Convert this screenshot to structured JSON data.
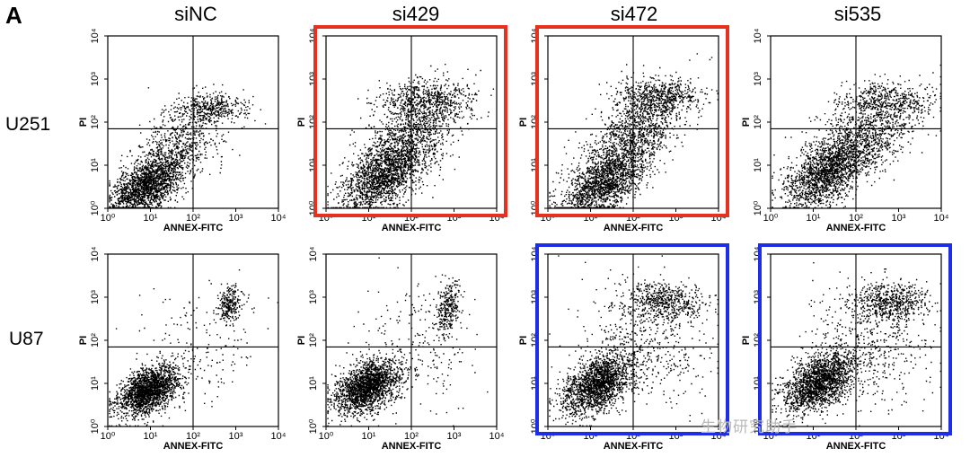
{
  "figure": {
    "panel_letter": "A",
    "columns": [
      "siNC",
      "si429",
      "si472",
      "si535"
    ],
    "rows": [
      "U251",
      "U87"
    ],
    "highlight_colors": {
      "red": "#e5311f",
      "blue": "#1e2ee6"
    },
    "highlights": [
      {
        "row": 0,
        "col": 1,
        "color": "red"
      },
      {
        "row": 0,
        "col": 2,
        "color": "red"
      },
      {
        "row": 1,
        "col": 2,
        "color": "blue"
      },
      {
        "row": 1,
        "col": 3,
        "color": "blue"
      }
    ],
    "watermark": "生物研究助手"
  },
  "chart_data": {
    "type": "scatter",
    "description_type": "flow-cytometry dot plots (Annexin V-FITC / PI)",
    "xlabel": "ANNEX-FITC",
    "ylabel": "PI",
    "xscale": "log",
    "yscale": "log",
    "xlim": [
      1,
      10000
    ],
    "ylim": [
      1,
      10000
    ],
    "x_ticks": [
      "10⁰",
      "10¹",
      "10²",
      "10³",
      "10⁴"
    ],
    "y_ticks": [
      "10⁰",
      "10¹",
      "10²",
      "10³",
      "10⁴"
    ],
    "quadrant_gate": {
      "x": 100,
      "y": 70
    },
    "panels": [
      {
        "cell_line": "U251",
        "condition": "siNC",
        "seed": 11,
        "clusters": [
          {
            "cx": 0.9,
            "cy": 0.55,
            "sx": 0.42,
            "sy": 0.38,
            "n": 1900,
            "rho": 0.55
          },
          {
            "cx": 2.4,
            "cy": 2.35,
            "sx": 0.45,
            "sy": 0.16,
            "n": 380,
            "rho": 0.0
          },
          {
            "cx": 1.7,
            "cy": 1.5,
            "sx": 0.55,
            "sy": 0.5,
            "n": 650,
            "rho": 0.5
          }
        ]
      },
      {
        "cell_line": "U251",
        "condition": "si429",
        "seed": 23,
        "clusters": [
          {
            "cx": 1.3,
            "cy": 0.7,
            "sx": 0.5,
            "sy": 0.42,
            "n": 1500,
            "rho": 0.55
          },
          {
            "cx": 2.3,
            "cy": 2.5,
            "sx": 0.55,
            "sy": 0.25,
            "n": 600,
            "rho": 0.0
          },
          {
            "cx": 1.9,
            "cy": 1.6,
            "sx": 0.6,
            "sy": 0.55,
            "n": 1100,
            "rho": 0.6
          }
        ]
      },
      {
        "cell_line": "U251",
        "condition": "si472",
        "seed": 37,
        "clusters": [
          {
            "cx": 1.3,
            "cy": 0.6,
            "sx": 0.5,
            "sy": 0.42,
            "n": 1600,
            "rho": 0.55
          },
          {
            "cx": 2.6,
            "cy": 2.6,
            "sx": 0.5,
            "sy": 0.22,
            "n": 550,
            "rho": 0.0
          },
          {
            "cx": 2.0,
            "cy": 1.7,
            "sx": 0.6,
            "sy": 0.55,
            "n": 1100,
            "rho": 0.6
          }
        ]
      },
      {
        "cell_line": "U251",
        "condition": "si535",
        "seed": 41,
        "clusters": [
          {
            "cx": 1.3,
            "cy": 0.8,
            "sx": 0.48,
            "sy": 0.4,
            "n": 1500,
            "rho": 0.5
          },
          {
            "cx": 2.7,
            "cy": 2.5,
            "sx": 0.55,
            "sy": 0.22,
            "n": 500,
            "rho": 0.0
          },
          {
            "cx": 2.1,
            "cy": 1.6,
            "sx": 0.65,
            "sy": 0.5,
            "n": 1100,
            "rho": 0.55
          }
        ]
      },
      {
        "cell_line": "U87",
        "condition": "siNC",
        "seed": 53,
        "clusters": [
          {
            "cx": 0.95,
            "cy": 0.85,
            "sx": 0.35,
            "sy": 0.28,
            "n": 2000,
            "rho": 0.45
          },
          {
            "cx": 2.85,
            "cy": 2.85,
            "sx": 0.14,
            "sy": 0.22,
            "n": 260,
            "rho": 0.2
          },
          {
            "cx": 2.2,
            "cy": 1.9,
            "sx": 0.7,
            "sy": 0.7,
            "n": 170,
            "rho": 0.0
          }
        ]
      },
      {
        "cell_line": "U87",
        "condition": "si429",
        "seed": 67,
        "clusters": [
          {
            "cx": 0.95,
            "cy": 0.95,
            "sx": 0.38,
            "sy": 0.3,
            "n": 2000,
            "rho": 0.45
          },
          {
            "cx": 2.85,
            "cy": 2.75,
            "sx": 0.14,
            "sy": 0.3,
            "n": 300,
            "rho": 0.2
          },
          {
            "cx": 2.2,
            "cy": 1.8,
            "sx": 0.7,
            "sy": 0.75,
            "n": 220,
            "rho": 0.0
          }
        ]
      },
      {
        "cell_line": "U87",
        "condition": "si472",
        "seed": 79,
        "clusters": [
          {
            "cx": 1.15,
            "cy": 1.0,
            "sx": 0.42,
            "sy": 0.35,
            "n": 1900,
            "rho": 0.45
          },
          {
            "cx": 2.7,
            "cy": 2.9,
            "sx": 0.45,
            "sy": 0.22,
            "n": 550,
            "rho": 0.0
          },
          {
            "cx": 2.3,
            "cy": 1.9,
            "sx": 0.75,
            "sy": 0.7,
            "n": 500,
            "rho": 0.0
          }
        ]
      },
      {
        "cell_line": "U87",
        "condition": "si535",
        "seed": 97,
        "clusters": [
          {
            "cx": 1.15,
            "cy": 1.05,
            "sx": 0.42,
            "sy": 0.35,
            "n": 1900,
            "rho": 0.45
          },
          {
            "cx": 2.8,
            "cy": 2.9,
            "sx": 0.45,
            "sy": 0.22,
            "n": 600,
            "rho": 0.0
          },
          {
            "cx": 2.3,
            "cy": 1.9,
            "sx": 0.75,
            "sy": 0.7,
            "n": 500,
            "rho": 0.0
          }
        ]
      }
    ]
  }
}
